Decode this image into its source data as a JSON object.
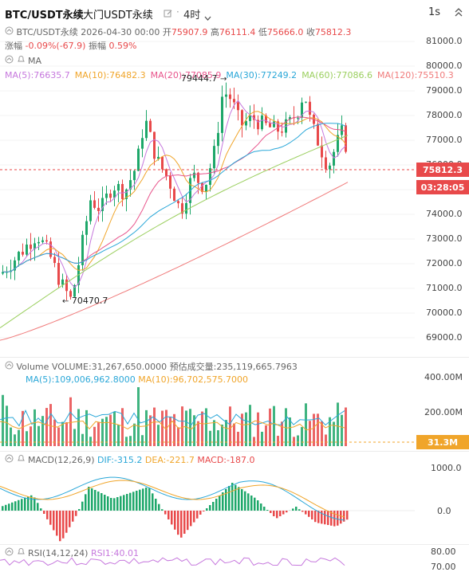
{
  "header": {
    "symbol": "BTC/USDT永续",
    "gate_name": "大门USDT永续",
    "interval": "4时",
    "right_interval": "1s"
  },
  "ohlc": {
    "pair_label": "BTC/USDT永续",
    "datetime": "2026-04-30 00:00",
    "open_label": "开",
    "open": "75907.9",
    "high_label": "高",
    "high": "76111.4",
    "low_label": "低",
    "low": "75666.0",
    "close_label": "收",
    "close": "75812.3",
    "change_label": "涨幅",
    "change": "-0.09%(-67.9)",
    "amp_label": "振幅",
    "amp": "0.59%"
  },
  "ma_legend": {
    "label": "MA",
    "items": [
      {
        "text": "MA(5):76635.7",
        "color": "#c678dd"
      },
      {
        "text": "MA(10):76482.3",
        "color": "#f0a52a"
      },
      {
        "text": "MA(20):77085.9",
        "color": "#e8558c"
      },
      {
        "text": "MA(30):77249.2",
        "color": "#2aa7d8"
      },
      {
        "text": "MA(60):77086.6",
        "color": "#9bcf5f"
      },
      {
        "text": "MA(120):75510.3",
        "color": "#f07b7b"
      }
    ]
  },
  "price_axis": [
    "81000.0",
    "80000.0",
    "79000.0",
    "78000.0",
    "77000.0",
    "76000.0",
    "75000.0",
    "74000.0",
    "73000.0",
    "72000.0",
    "71000.0",
    "70000.0",
    "69000.0"
  ],
  "price_marks": {
    "current": "75812.3",
    "countdown": "03:28:05",
    "high_mark": "79444.7",
    "low_mark": "70470.7"
  },
  "volume": {
    "label": "Volume",
    "value": "VOLUME:31,267,650.0000",
    "est": "预估成交量:235,119,665.7963",
    "ma5": "MA(5):109,006,962.8000",
    "ma10": "MA(10):96,702,575.7000",
    "axis": [
      "400.00M",
      "200.00M"
    ],
    "current": "31.3M"
  },
  "macd": {
    "label": "MACD(12,26,9)",
    "dif": "DIF:-315.2",
    "dea": "DEA:-221.7",
    "macd": "MACD:-187.0",
    "axis": [
      "1000.0",
      "0.0"
    ]
  },
  "rsi": {
    "label": "RSI(14,12,24)",
    "rsi1": "RSI1:40.01",
    "axis": [
      "80.00",
      "70.00"
    ]
  },
  "colors": {
    "up": "#1ea76a",
    "down": "#e8494a",
    "ma5": "#c678dd",
    "ma10": "#f0a52a",
    "ma20": "#e8558c",
    "ma30": "#2aa7d8",
    "ma60": "#9bcf5f",
    "ma120": "#f07b7b"
  }
}
